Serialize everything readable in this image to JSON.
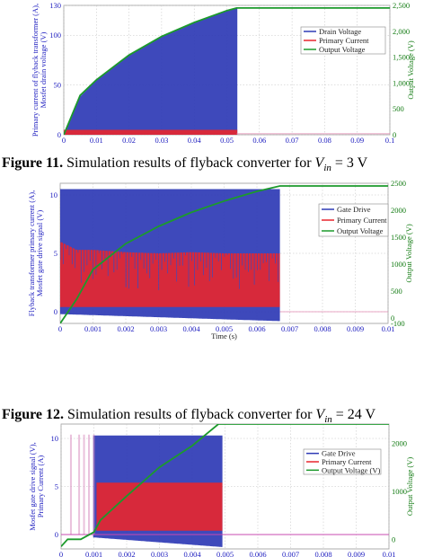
{
  "captions": [
    {
      "fig": "Figure 11.",
      "text": "Simulation results of flyback converter for ",
      "var": "V",
      "sub": "in",
      "tail": " = 3 V"
    },
    {
      "fig": "Figure 12.",
      "text": "Simulation results of flyback converter for ",
      "var": "V",
      "sub": "in",
      "tail": " = 24 V"
    }
  ],
  "chart_data": [
    {
      "type": "line",
      "title": "",
      "xlabel": "Time (s)",
      "ylabel": [
        "Primary current of flyback transformer (A),",
        "Mosfet drain voltage (V)"
      ],
      "ylabel_right": "Output Voltage (V)",
      "xlim": [
        0,
        0.1
      ],
      "ylim": [
        0,
        130
      ],
      "ylim_right": [
        0,
        2500
      ],
      "x_ticks": [
        "0",
        "0.01",
        "0.02",
        "0.03",
        "0.04",
        "0.05",
        "0.06",
        "0.07",
        "0.08",
        "0.09",
        "0.1"
      ],
      "y_ticks": [
        "0",
        "50",
        "100",
        "130"
      ],
      "y_ticks_right": [
        "0",
        "500",
        "1,000",
        "1,500",
        "2,000",
        "2,500"
      ],
      "legend_position": "top-right",
      "series": [
        {
          "name": "Drain Voltage",
          "color": "#2e3ab5",
          "axis": "left",
          "x": [
            0,
            0.005,
            0.01,
            0.02,
            0.03,
            0.04,
            0.05,
            0.053
          ],
          "y": [
            0,
            38,
            55,
            80,
            99,
            113,
            125,
            127
          ]
        },
        {
          "name": "Primary Current",
          "color": "#e8262e",
          "axis": "left",
          "x": [
            0,
            0.053
          ],
          "y": [
            5,
            5
          ]
        },
        {
          "name": "Output Voltage",
          "color": "#1c9a2c",
          "axis": "right",
          "x": [
            0,
            0.005,
            0.01,
            0.02,
            0.03,
            0.04,
            0.05,
            0.053,
            0.1
          ],
          "y": [
            0,
            760,
            1060,
            1540,
            1900,
            2170,
            2400,
            2450,
            2450
          ]
        }
      ]
    },
    {
      "type": "line",
      "title": "",
      "xlabel": "Time (s)",
      "ylabel": [
        "Flyback transformer primary current (A),",
        "Mosfet gate drive signal (V)"
      ],
      "ylabel_right": "Output Voltage (V)",
      "xlim": [
        0,
        0.01
      ],
      "ylim": [
        -1,
        11
      ],
      "ylim_right": [
        -100,
        2500
      ],
      "x_ticks": [
        "0",
        "0.001",
        "0.002",
        "0.003",
        "0.004",
        "0.005",
        "0.006",
        "0.007",
        "0.008",
        "0.009",
        "0.01"
      ],
      "y_ticks": [
        "0",
        "5",
        "10"
      ],
      "y_ticks_right": [
        "-100",
        "0",
        "500",
        "1000",
        "1500",
        "2000",
        "2500"
      ],
      "legend_position": "top-right",
      "series": [
        {
          "name": "Gate Drive",
          "color": "#2e3ab5",
          "axis": "left",
          "x": [
            0,
            0.00668
          ],
          "y": [
            10.5,
            10.5
          ]
        },
        {
          "name": "Primary Current",
          "color": "#e8262e",
          "axis": "left",
          "x": [
            0,
            0.0005,
            0.001,
            0.002,
            0.003,
            0.004,
            0.005,
            0.006,
            0.00668
          ],
          "y": [
            6,
            5.3,
            5.3,
            5.1,
            5.0,
            5.1,
            5.0,
            5.0,
            5.0
          ]
        },
        {
          "name": "Output Voltage",
          "color": "#1c9a2c",
          "axis": "right",
          "x": [
            0,
            0.0005,
            0.001,
            0.002,
            0.003,
            0.004,
            0.005,
            0.006,
            0.0067,
            0.01
          ],
          "y": [
            -100,
            350,
            900,
            1380,
            1700,
            1960,
            2170,
            2350,
            2450,
            2450
          ]
        }
      ]
    },
    {
      "type": "line",
      "title": "",
      "xlabel": "Time (s)",
      "ylabel": [
        "Mosfet gate drive signal (V),",
        "Primary Current (A)"
      ],
      "ylabel_right": "Output Voltage (V)",
      "xlim": [
        0,
        0.01
      ],
      "ylim": [
        -1.5,
        11.5
      ],
      "ylim_right": [
        -200,
        2400
      ],
      "x_ticks": [
        "0",
        "0.001",
        "0.002",
        "0.003",
        "0.004",
        "0.005",
        "0.006",
        "0.007",
        "0.008",
        "0.009",
        "0.01"
      ],
      "y_ticks": [
        "0",
        "5",
        "10"
      ],
      "y_ticks_right": [
        "0",
        "1000",
        "2000"
      ],
      "legend_position": "right",
      "series": [
        {
          "name": "Gate Drive",
          "color": "#2e3ab5",
          "axis": "left",
          "x": [
            0.001,
            0.0049
          ],
          "y": [
            10.3,
            10.3
          ]
        },
        {
          "name": "Primary Current",
          "color": "#e8262e",
          "axis": "left",
          "x": [
            0.0011,
            0.0049
          ],
          "y": [
            5.4,
            5.4
          ]
        },
        {
          "name": "Output Voltage (V)",
          "color": "#1c9a2c",
          "axis": "right",
          "x": [
            0,
            0.0002,
            0.0006,
            0.001,
            0.0012,
            0.002,
            0.003,
            0.004,
            0.0048,
            0.01
          ],
          "y": [
            -150,
            0,
            0,
            150,
            400,
            900,
            1500,
            1950,
            2400,
            2400
          ]
        }
      ]
    }
  ]
}
